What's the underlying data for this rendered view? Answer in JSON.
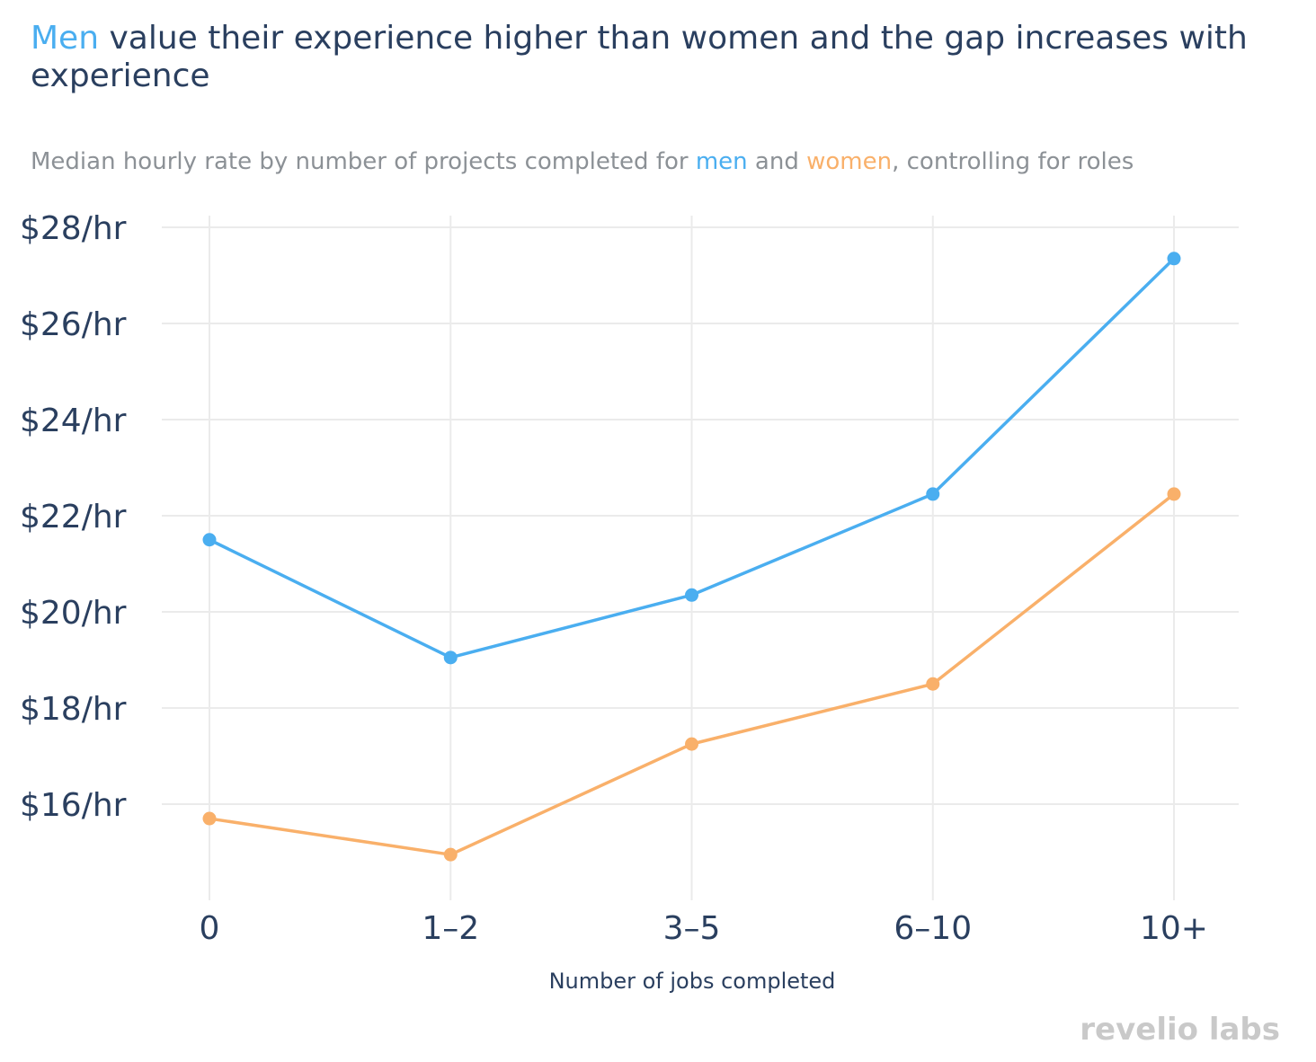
{
  "header": {
    "title_highlight": "Men",
    "title_rest": " value their experience higher than women and the gap increases with experience",
    "subtitle_pre": "Median hourly rate by number of projects completed for ",
    "subtitle_men": "men",
    "subtitle_mid": " and ",
    "subtitle_women": "women",
    "subtitle_post": ", controlling for roles"
  },
  "brand": {
    "text": "revelio labs"
  },
  "colors": {
    "men": "#4aaef0",
    "women": "#f9b06a",
    "grid": "#ebebeb",
    "text": "#2a3f5f"
  },
  "chart_data": {
    "type": "line",
    "title": "Men value their experience higher than women and the gap increases with experience",
    "subtitle": "Median hourly rate by number of projects completed for men and women, controlling for roles",
    "xlabel": "Number of jobs completed",
    "ylabel": "",
    "categories": [
      "0",
      "1–2",
      "3–5",
      "6–10",
      "10+"
    ],
    "ylim": [
      14.2,
      28.2
    ],
    "yticks": [
      16,
      18,
      20,
      22,
      24,
      26,
      28
    ],
    "ytick_labels": [
      "$16/hr",
      "$18/hr",
      "$20/hr",
      "$22/hr",
      "$24/hr",
      "$26/hr",
      "$28/hr"
    ],
    "series": [
      {
        "name": "men",
        "color": "#4aaef0",
        "values": [
          21.5,
          19.05,
          20.35,
          22.45,
          27.35
        ]
      },
      {
        "name": "women",
        "color": "#f9b06a",
        "values": [
          15.7,
          14.95,
          17.25,
          18.5,
          22.45
        ]
      }
    ]
  }
}
